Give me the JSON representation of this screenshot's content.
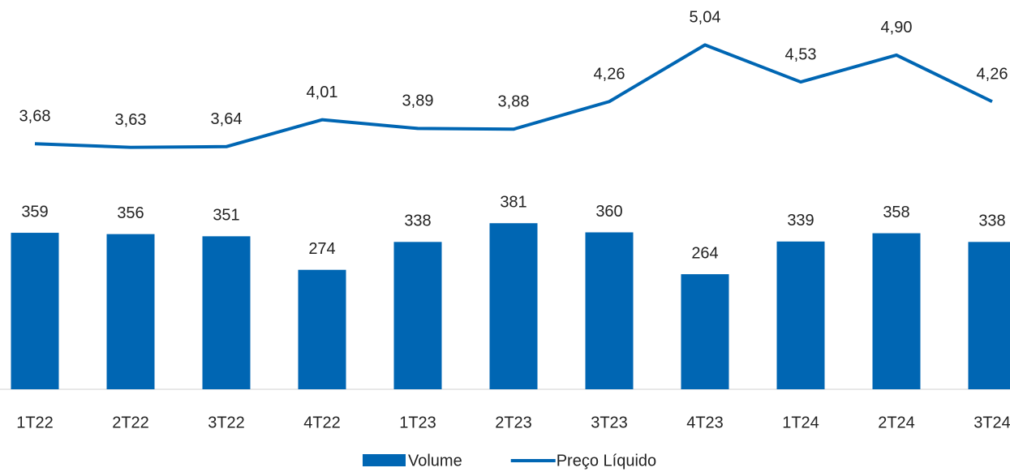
{
  "chart_data": {
    "type": "bar_line",
    "categories": [
      "1T22",
      "2T22",
      "3T22",
      "4T22",
      "1T23",
      "2T23",
      "3T23",
      "4T23",
      "1T24",
      "2T24",
      "3T24"
    ],
    "series": [
      {
        "name": "Volume",
        "color": "#0066b3",
        "type": "bar",
        "values": [
          359,
          356,
          351,
          274,
          338,
          381,
          360,
          264,
          339,
          358,
          338
        ]
      },
      {
        "name": "Preço Líquido",
        "color": "#0066b3",
        "type": "line",
        "axis": "y2",
        "values": [
          3.68,
          3.63,
          3.64,
          4.01,
          3.89,
          3.88,
          4.26,
          5.04,
          4.53,
          4.9,
          4.26
        ],
        "value_labels": [
          "3,68",
          "3,63",
          "3,64",
          "4,01",
          "3,89",
          "3,88",
          "4,26",
          "5,04",
          "4,53",
          "4,90",
          "4,26"
        ]
      }
    ],
    "ylim": [
      0,
      800
    ],
    "y2lim": [
      0.3,
      5.1
    ],
    "legend": "bottom"
  }
}
